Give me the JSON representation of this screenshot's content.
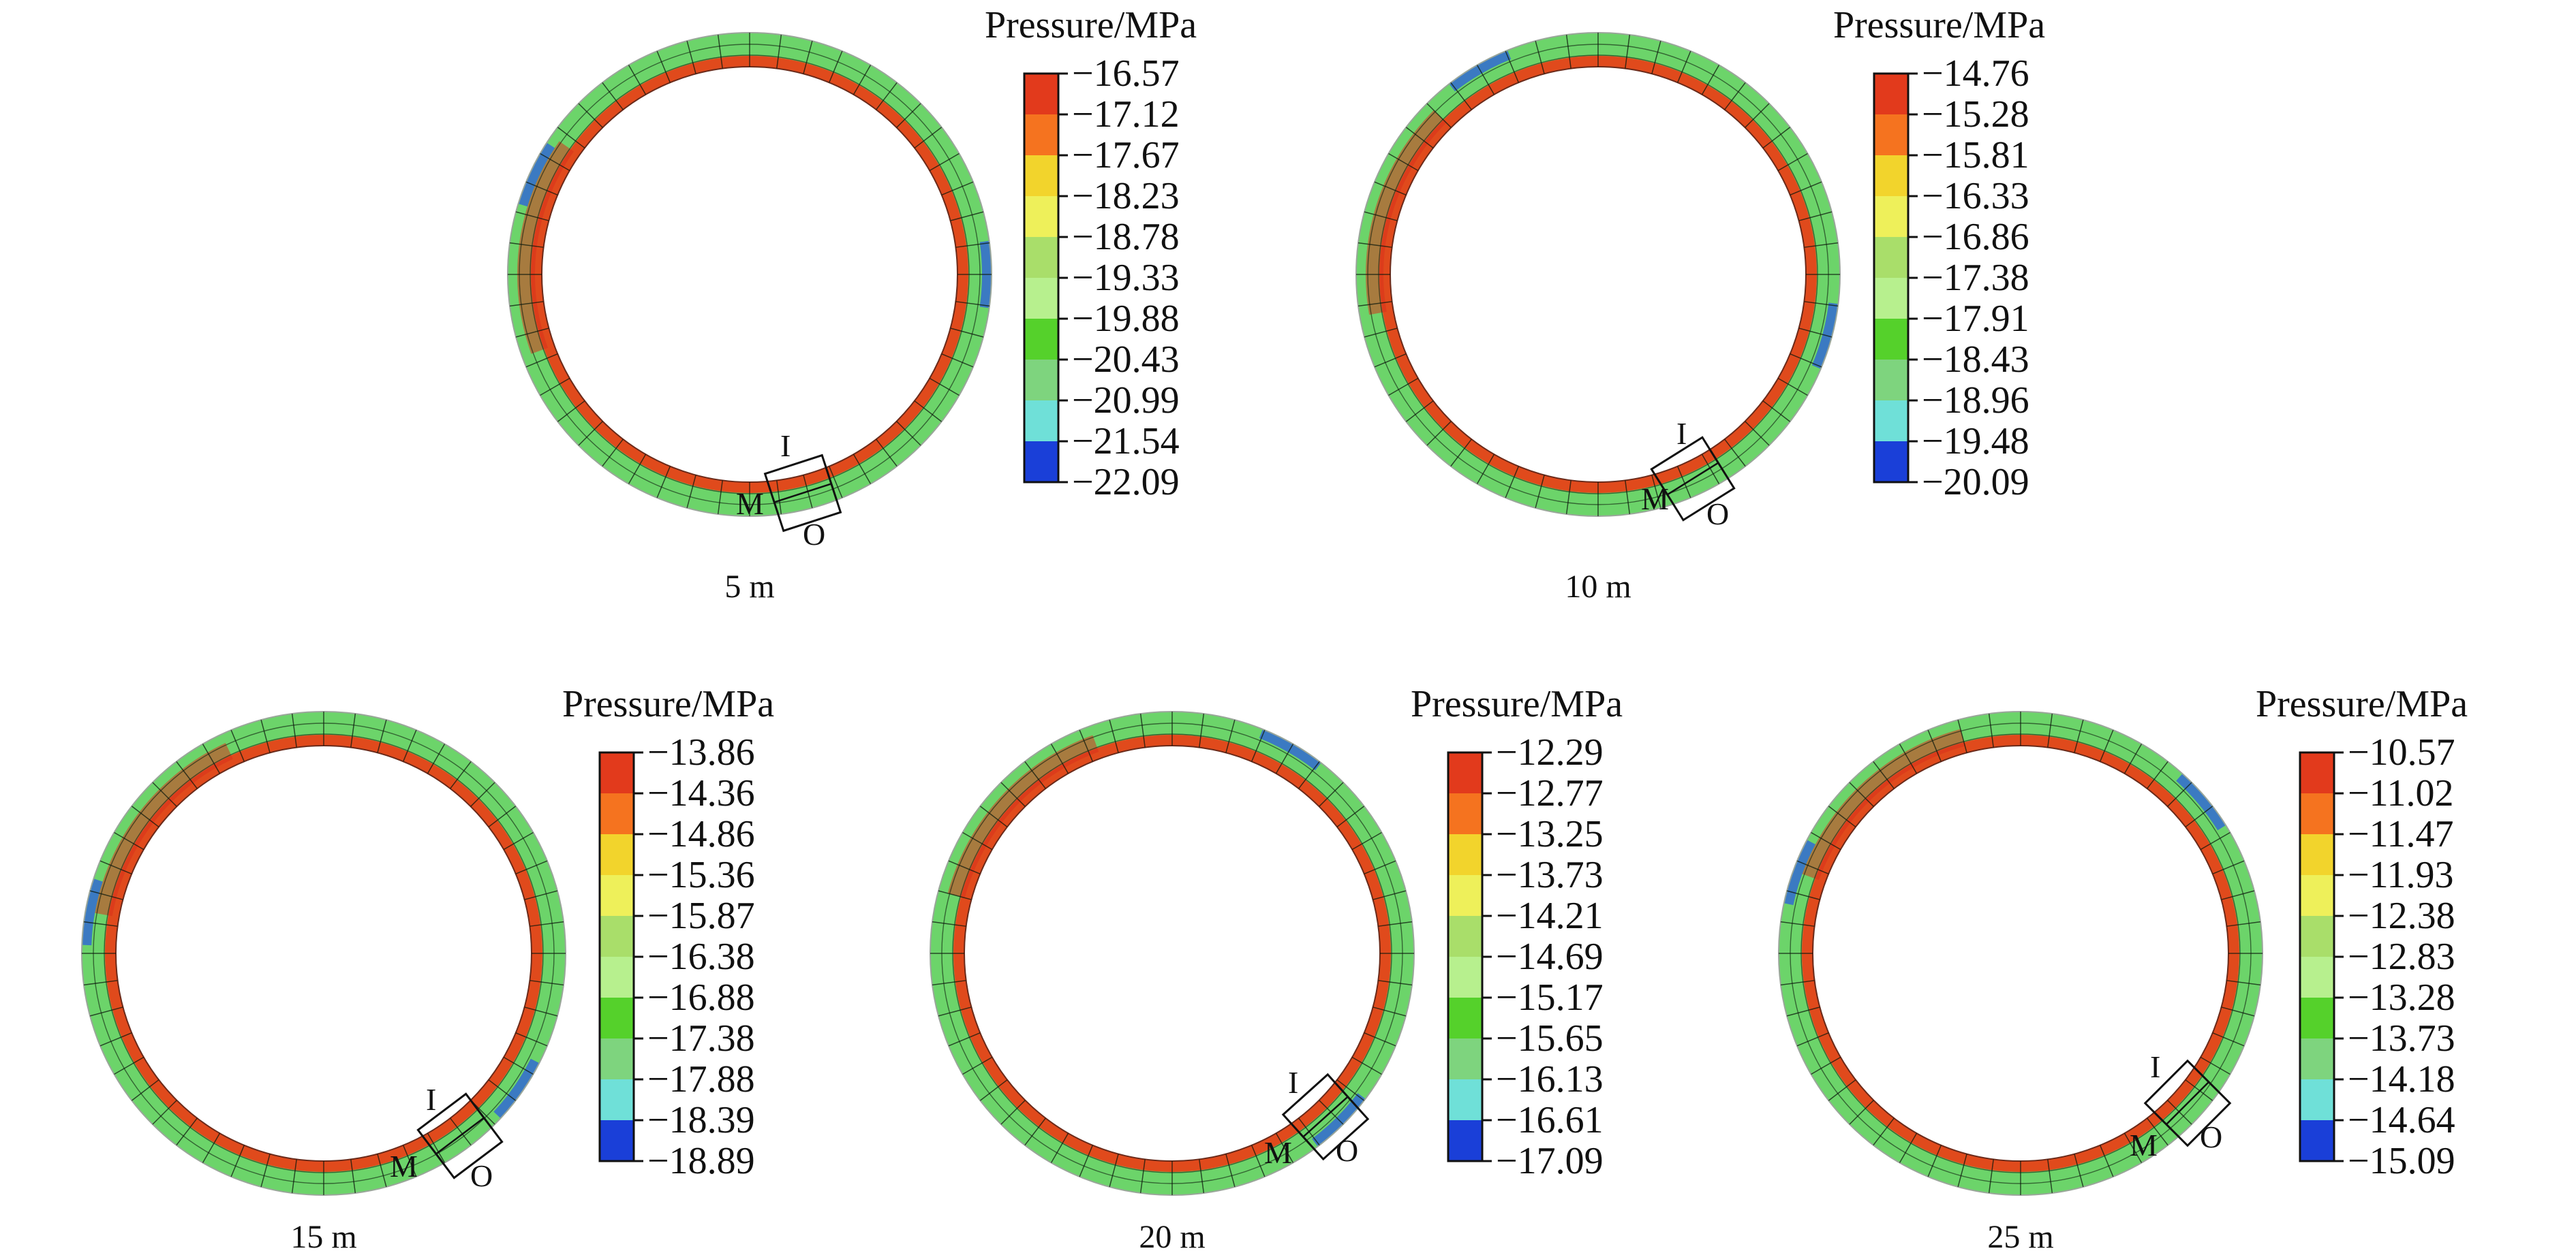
{
  "palette": [
    "#1a3fd8",
    "#6fe0d8",
    "#7ed47e",
    "#55d12b",
    "#b7f08e",
    "#a9de6a",
    "#eef05a",
    "#f2d42c",
    "#f5731f",
    "#e23a1c"
  ],
  "ring_colors": {
    "base": "#6cd46a",
    "inner_band": "#e04a1c",
    "hot": "#d8321c",
    "cold": "#2f63d8",
    "grid": "#0e1a0e"
  },
  "legend_title": "Pressure/MPa",
  "marker_labels": {
    "inner": "I",
    "middle": "M",
    "outer": "O"
  },
  "panels": [
    {
      "depth_label": "5 m",
      "ticks": [
        "−16.57",
        "−17.12",
        "−17.67",
        "−18.23",
        "−18.78",
        "−19.33",
        "−19.88",
        "−20.43",
        "−20.99",
        "−21.54",
        "−22.09"
      ]
    },
    {
      "depth_label": "10 m",
      "ticks": [
        "−14.76",
        "−15.28",
        "−15.81",
        "−16.33",
        "−16.86",
        "−17.38",
        "−17.91",
        "−18.43",
        "−18.96",
        "−19.48",
        "−20.09"
      ]
    },
    {
      "depth_label": "15 m",
      "ticks": [
        "−13.86",
        "−14.36",
        "−14.86",
        "−15.36",
        "−15.87",
        "−16.38",
        "−16.88",
        "−17.38",
        "−17.88",
        "−18.39",
        "−18.89"
      ]
    },
    {
      "depth_label": "20 m",
      "ticks": [
        "−12.29",
        "−12.77",
        "−13.25",
        "−13.73",
        "−14.21",
        "−14.69",
        "−15.17",
        "−15.65",
        "−16.13",
        "−16.61",
        "−17.09"
      ]
    },
    {
      "depth_label": "25 m",
      "ticks": [
        "−10.57",
        "−11.02",
        "−11.47",
        "−11.93",
        "−12.38",
        "−12.83",
        "−13.28",
        "−13.73",
        "−14.18",
        "−14.64",
        "−15.09"
      ]
    }
  ]
}
